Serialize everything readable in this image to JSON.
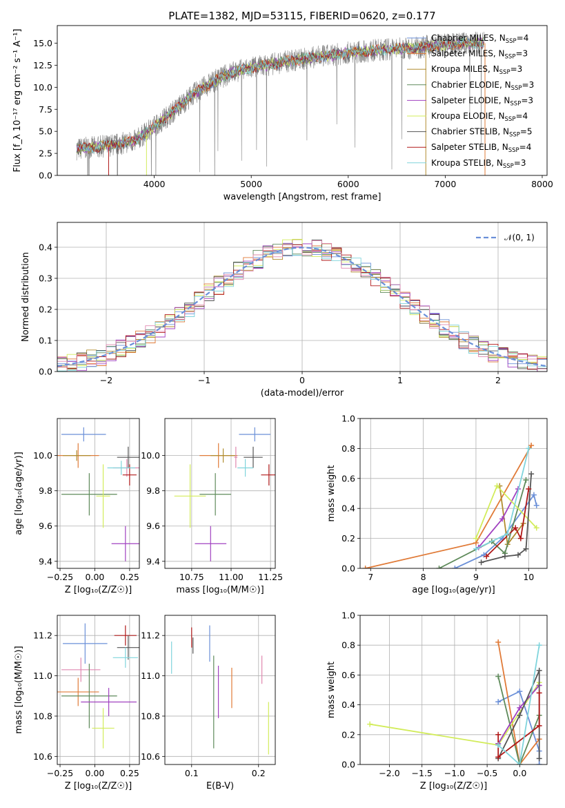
{
  "figure_title": "PLATE=1382, MJD=53115, FIBERID=0620, z=0.177",
  "colors": {
    "Chabrier MILES": "#6a8fd8",
    "Salpeter MILES": "#e07a37",
    "Kroupa MILES": "#b08c2e",
    "Chabrier ELODIE": "#5e8a5a",
    "Salpeter ELODIE": "#a040c0",
    "Kroupa ELODIE": "#d2ec5a",
    "Chabrier STELIB": "#555555",
    "Salpeter STELIB": "#b01818",
    "Kroupa STELIB": "#7fd4dc",
    "data": "#808080",
    "pink": "#e088b0",
    "normal": "#6a8fd8"
  },
  "chart_data": [
    {
      "id": "spectrum",
      "type": "line",
      "title": "PLATE=1382, MJD=53115, FIBERID=0620, z=0.177",
      "xlabel": "wavelength [Angstrom, rest frame]",
      "ylabel": "Flux [f_λ 10⁻¹⁷ erg cm⁻² s⁻¹ A⁻¹]",
      "xlim": [
        3000,
        8050
      ],
      "ylim": [
        0,
        17
      ],
      "xticks": [
        "4000",
        "5000",
        "6000",
        "7000",
        "8000"
      ],
      "yticks": [
        "0.0",
        "2.5",
        "5.0",
        "7.5",
        "10.0",
        "12.5",
        "15.0"
      ],
      "grid": false,
      "legend_position": "top-right",
      "legend": [
        {
          "label": "Chabrier MILES, N",
          "sub": "SSP",
          "suffix": "=4",
          "color": "Chabrier MILES"
        },
        {
          "label": "Salpeter MILES, N",
          "sub": "SSP",
          "suffix": "=3",
          "color": "Salpeter MILES"
        },
        {
          "label": "Kroupa MILES, N",
          "sub": "SSP",
          "suffix": "=3",
          "color": "Kroupa MILES"
        },
        {
          "label": "Chabrier ELODIE, N",
          "sub": "SSP",
          "suffix": "=3",
          "color": "Chabrier ELODIE"
        },
        {
          "label": "Salpeter ELODIE, N",
          "sub": "SSP",
          "suffix": "=3",
          "color": "Salpeter ELODIE"
        },
        {
          "label": "Kroupa ELODIE, N",
          "sub": "SSP",
          "suffix": "=4",
          "color": "Kroupa ELODIE"
        },
        {
          "label": "Chabrier STELIB, N",
          "sub": "SSP",
          "suffix": "=5",
          "color": "Chabrier STELIB"
        },
        {
          "label": "Salpeter STELIB, N",
          "sub": "SSP",
          "suffix": "=4",
          "color": "Salpeter STELIB"
        },
        {
          "label": "Kroupa STELIB, N",
          "sub": "SSP",
          "suffix": "=3",
          "color": "Kroupa STELIB"
        }
      ],
      "continuum": {
        "x": [
          3200,
          3400,
          3600,
          3800,
          4000,
          4200,
          4400,
          4600,
          4800,
          5000,
          5200,
          5400,
          5600,
          5800,
          6000,
          6200,
          6400,
          6600,
          6800,
          7000,
          7200,
          7400
        ],
        "y": [
          3.0,
          3.2,
          3.5,
          3.9,
          5.5,
          7.3,
          9.2,
          10.6,
          11.7,
          12.2,
          12.6,
          13.0,
          13.3,
          13.6,
          13.9,
          14.1,
          14.3,
          14.4,
          14.6,
          14.8,
          15.0,
          15.0
        ]
      }
    },
    {
      "id": "residuals",
      "type": "bar",
      "xlabel": "(data-model)/error",
      "ylabel": "Normed distribution",
      "xlim": [
        -2.5,
        2.5
      ],
      "ylim": [
        0,
        0.48
      ],
      "xticks": [
        "−2",
        "−1",
        "0",
        "1",
        "2"
      ],
      "yticks": [
        "0.0",
        "0.1",
        "0.2",
        "0.3",
        "0.4"
      ],
      "grid": true,
      "legend_position": "top-right",
      "legend": [
        {
          "label": "𝒩(0, 1)",
          "color": "normal"
        }
      ],
      "bin_width": 0.1
    },
    {
      "id": "z-age",
      "type": "scatter",
      "xlabel": "Z [log₁₀(Z/Z☉)]",
      "ylabel": "age  [log₁₀(age/yr)]",
      "xlim": [
        -0.27,
        0.32
      ],
      "ylim": [
        9.36,
        10.21
      ],
      "xticks": [
        "−0.25",
        "0.00",
        "0.25"
      ],
      "yticks": [
        "9.4",
        "9.6",
        "9.8",
        "10.0"
      ],
      "grid": true,
      "points": [
        {
          "x": -0.08,
          "y": 10.12,
          "xerr": 0.16,
          "yerr": 0.04,
          "color": "Chabrier MILES"
        },
        {
          "x": -0.12,
          "y": 10.0,
          "xerr": 0.15,
          "yerr": 0.07,
          "color": "Salpeter MILES"
        },
        {
          "x": -0.13,
          "y": 10.0,
          "xerr": 0.1,
          "yerr": 0.03,
          "color": "Kroupa MILES"
        },
        {
          "x": 0.23,
          "y": 9.93,
          "xerr": 0.1,
          "yerr": 0.05,
          "color": "pink"
        },
        {
          "x": -0.04,
          "y": 9.78,
          "xerr": 0.2,
          "yerr": 0.12,
          "color": "Chabrier ELODIE"
        },
        {
          "x": 0.22,
          "y": 9.5,
          "xerr": 0.1,
          "yerr": 0.1,
          "color": "Salpeter ELODIE"
        },
        {
          "x": 0.06,
          "y": 9.77,
          "xerr": 0.05,
          "yerr": 0.18,
          "color": "Kroupa ELODIE"
        },
        {
          "x": 0.24,
          "y": 9.99,
          "xerr": 0.08,
          "yerr": 0.06,
          "color": "Chabrier STELIB"
        },
        {
          "x": 0.25,
          "y": 9.89,
          "xerr": 0.05,
          "yerr": 0.06,
          "color": "Salpeter STELIB"
        },
        {
          "x": 0.19,
          "y": 9.93,
          "xerr": 0.1,
          "yerr": 0.04,
          "color": "Kroupa STELIB"
        }
      ]
    },
    {
      "id": "mass-age",
      "type": "scatter",
      "xlabel": "mass [log₁₀(M/M☉)]",
      "ylabel": "",
      "xlim": [
        10.58,
        11.28
      ],
      "ylim": [
        9.36,
        10.21
      ],
      "xticks": [
        "10.75",
        "11.00",
        "11.25"
      ],
      "yticks": [
        "9.4",
        "9.6",
        "9.8",
        "10.0"
      ],
      "grid": true,
      "points": [
        {
          "x": 11.15,
          "y": 10.12,
          "xerr": 0.1,
          "yerr": 0.04,
          "color": "Chabrier MILES"
        },
        {
          "x": 10.92,
          "y": 10.0,
          "xerr": 0.12,
          "yerr": 0.07,
          "color": "Salpeter MILES"
        },
        {
          "x": 10.95,
          "y": 10.0,
          "xerr": 0.08,
          "yerr": 0.04,
          "color": "Kroupa MILES"
        },
        {
          "x": 11.03,
          "y": 9.99,
          "xerr": 0.01,
          "yerr": 0.06,
          "color": "pink"
        },
        {
          "x": 10.9,
          "y": 9.78,
          "xerr": 0.1,
          "yerr": 0.12,
          "color": "Chabrier ELODIE"
        },
        {
          "x": 10.87,
          "y": 9.5,
          "xerr": 0.1,
          "yerr": 0.1,
          "color": "Salpeter ELODIE"
        },
        {
          "x": 10.74,
          "y": 9.77,
          "xerr": 0.1,
          "yerr": 0.18,
          "color": "Kroupa ELODIE"
        },
        {
          "x": 11.14,
          "y": 9.99,
          "xerr": 0.06,
          "yerr": 0.06,
          "color": "Chabrier STELIB"
        },
        {
          "x": 11.24,
          "y": 9.89,
          "xerr": 0.05,
          "yerr": 0.06,
          "color": "Salpeter STELIB"
        },
        {
          "x": 11.09,
          "y": 9.93,
          "xerr": 0.05,
          "yerr": 0.05,
          "color": "Kroupa STELIB"
        }
      ]
    },
    {
      "id": "age-weight",
      "type": "line",
      "xlabel": "age  [log₁₀(age/yr)]",
      "ylabel": "mass weight",
      "xlim": [
        6.8,
        10.35
      ],
      "ylim": [
        0,
        1.0
      ],
      "xticks": [
        "7",
        "8",
        "9",
        "10"
      ],
      "yticks": [
        "0.0",
        "0.2",
        "0.4",
        "0.6",
        "0.8",
        "1.0"
      ],
      "grid": true,
      "series": [
        {
          "color": "Chabrier MILES",
          "x": [
            8.6,
            9.15,
            9.5,
            10.1,
            10.15
          ],
          "y": [
            0.0,
            0.09,
            0.2,
            0.49,
            0.42
          ]
        },
        {
          "color": "Salpeter MILES",
          "x": [
            6.9,
            9.0,
            10.05
          ],
          "y": [
            0.0,
            0.17,
            0.82
          ]
        },
        {
          "color": "Kroupa MILES",
          "x": [
            9.45,
            9.6,
            9.9
          ],
          "y": [
            0.55,
            0.16,
            0.3
          ]
        },
        {
          "color": "Chabrier ELODIE",
          "x": [
            8.3,
            9.3,
            9.55,
            9.95
          ],
          "y": [
            0.0,
            0.18,
            0.1,
            0.59
          ]
        },
        {
          "color": "Salpeter ELODIE",
          "x": [
            9.05,
            9.5,
            9.8
          ],
          "y": [
            0.14,
            0.33,
            0.53
          ]
        },
        {
          "color": "Kroupa ELODIE",
          "x": [
            9.0,
            9.4,
            10.15
          ],
          "y": [
            0.2,
            0.55,
            0.27
          ]
        },
        {
          "color": "Chabrier STELIB",
          "x": [
            9.1,
            9.55,
            9.8,
            9.95,
            10.05
          ],
          "y": [
            0.04,
            0.08,
            0.09,
            0.13,
            0.63
          ]
        },
        {
          "color": "Salpeter STELIB",
          "x": [
            9.2,
            9.75,
            9.85,
            10.0
          ],
          "y": [
            0.08,
            0.27,
            0.2,
            0.53
          ]
        },
        {
          "color": "Kroupa STELIB",
          "x": [
            9.0,
            9.6,
            10.0
          ],
          "y": [
            0.13,
            0.23,
            0.8
          ]
        }
      ]
    },
    {
      "id": "z-mass",
      "type": "scatter",
      "xlabel": "Z [log₁₀(Z/Z☉)]",
      "ylabel": "mass [log₁₀(M/M☉)]",
      "xlim": [
        -0.27,
        0.32
      ],
      "ylim": [
        10.56,
        11.3
      ],
      "xticks": [
        "−0.25",
        "0.00",
        "0.25"
      ],
      "yticks": [
        "10.6",
        "10.8",
        "11.0",
        "11.2"
      ],
      "grid": true,
      "points": [
        {
          "x": -0.07,
          "y": 11.16,
          "xerr": 0.16,
          "yerr": 0.1,
          "color": "Chabrier MILES"
        },
        {
          "x": -0.12,
          "y": 10.92,
          "xerr": 0.15,
          "yerr": 0.07,
          "color": "Salpeter MILES"
        },
        {
          "x": -0.1,
          "y": 11.03,
          "xerr": 0.14,
          "yerr": 0.06,
          "color": "pink"
        },
        {
          "x": 0.22,
          "y": 11.2,
          "xerr": 0.08,
          "yerr": 0.05,
          "color": "Salpeter STELIB"
        },
        {
          "x": 0.24,
          "y": 11.14,
          "xerr": 0.08,
          "yerr": 0.06,
          "color": "Chabrier STELIB"
        },
        {
          "x": 0.22,
          "y": 11.09,
          "xerr": 0.09,
          "yerr": 0.05,
          "color": "Kroupa STELIB"
        },
        {
          "x": -0.04,
          "y": 10.9,
          "xerr": 0.2,
          "yerr": 0.16,
          "color": "Chabrier ELODIE"
        },
        {
          "x": 0.1,
          "y": 10.87,
          "xerr": 0.2,
          "yerr": 0.07,
          "color": "Salpeter ELODIE"
        },
        {
          "x": 0.06,
          "y": 10.74,
          "xerr": 0.08,
          "yerr": 0.1,
          "color": "Kroupa ELODIE"
        }
      ]
    },
    {
      "id": "ebv-mass",
      "type": "scatter",
      "xlabel": "E(B-V)",
      "ylabel": "",
      "xlim": [
        0.06,
        0.225
      ],
      "ylim": [
        10.56,
        11.3
      ],
      "xticks": [
        "0.1",
        "0.2"
      ],
      "yticks": [
        "10.6",
        "10.8",
        "11.0",
        "11.2"
      ],
      "grid": true,
      "points": [
        {
          "x": 0.07,
          "y": 11.09,
          "xerr": 0,
          "yerr": 0.08,
          "color": "Kroupa STELIB"
        },
        {
          "x": 0.1,
          "y": 11.19,
          "xerr": 0,
          "yerr": 0.05,
          "color": "Salpeter STELIB"
        },
        {
          "x": 0.102,
          "y": 11.15,
          "xerr": 0,
          "yerr": 0.04,
          "color": "Chabrier STELIB"
        },
        {
          "x": 0.127,
          "y": 11.16,
          "xerr": 0,
          "yerr": 0.09,
          "color": "Chabrier MILES"
        },
        {
          "x": 0.133,
          "y": 10.87,
          "xerr": 0,
          "yerr": 0.23,
          "color": "Chabrier ELODIE"
        },
        {
          "x": 0.14,
          "y": 10.92,
          "xerr": 0,
          "yerr": 0.13,
          "color": "Salpeter ELODIE"
        },
        {
          "x": 0.16,
          "y": 10.94,
          "xerr": 0,
          "yerr": 0.1,
          "color": "Salpeter MILES"
        },
        {
          "x": 0.205,
          "y": 11.03,
          "xerr": 0,
          "yerr": 0.07,
          "color": "pink"
        },
        {
          "x": 0.215,
          "y": 10.74,
          "xerr": 0,
          "yerr": 0.13,
          "color": "Kroupa ELODIE"
        }
      ]
    },
    {
      "id": "z-weight",
      "type": "line",
      "xlabel": "Z [log₁₀(Z/Z☉)]",
      "ylabel": "mass weight",
      "xlim": [
        -2.45,
        0.42
      ],
      "ylim": [
        0,
        1.0
      ],
      "xticks": [
        "−2.0",
        "−1.5",
        "−1.0",
        "−0.5",
        "0.0"
      ],
      "yticks": [
        "0.0",
        "0.2",
        "0.4",
        "0.6",
        "0.8",
        "1.0"
      ],
      "grid": true,
      "series": [
        {
          "color": "Chabrier MILES",
          "x": [
            -0.33,
            0.0,
            0.3,
            0.3
          ],
          "y": [
            0.42,
            0.49,
            0.09,
            0.0
          ]
        },
        {
          "color": "Salpeter MILES",
          "x": [
            -0.33,
            0.0,
            0.3
          ],
          "y": [
            0.82,
            0.0,
            0.17
          ]
        },
        {
          "color": "Kroupa ELODIE",
          "x": [
            -2.3,
            -0.33,
            0.3
          ],
          "y": [
            0.27,
            0.13,
            0.55
          ]
        },
        {
          "color": "Chabrier ELODIE",
          "x": [
            -0.33,
            0.0,
            0.3
          ],
          "y": [
            0.59,
            0.0,
            0.33
          ]
        },
        {
          "color": "Salpeter ELODIE",
          "x": [
            -0.33,
            0.0,
            0.3
          ],
          "y": [
            0.14,
            0.38,
            0.53
          ]
        },
        {
          "color": "Chabrier STELIB",
          "x": [
            -0.33,
            0.0,
            0.3,
            0.3
          ],
          "y": [
            0.04,
            0.33,
            0.63,
            0.04
          ]
        },
        {
          "color": "Salpeter STELIB",
          "x": [
            -0.33,
            -0.33,
            0.3,
            0.3
          ],
          "y": [
            0.2,
            0.05,
            0.26,
            0.48
          ]
        },
        {
          "color": "Kroupa STELIB",
          "x": [
            -0.33,
            0.0,
            0.3
          ],
          "y": [
            0.13,
            0.0,
            0.8
          ]
        }
      ]
    }
  ]
}
